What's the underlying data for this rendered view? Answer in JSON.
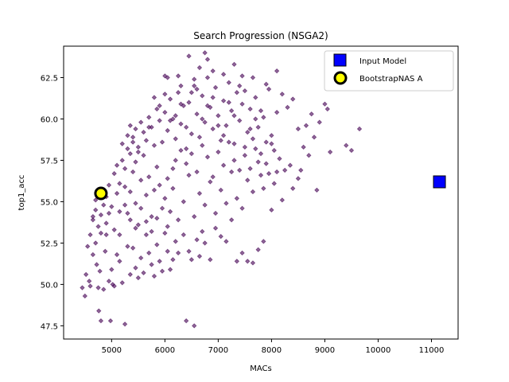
{
  "chart_data": {
    "type": "scatter",
    "title": "Search Progression (NSGA2)",
    "xlabel": "MACs",
    "ylabel": "top1_acc",
    "xlim": [
      4100,
      11500
    ],
    "ylim": [
      46.7,
      64.4
    ],
    "xticks": [
      5000,
      6000,
      7000,
      8000,
      9000,
      10000,
      11000
    ],
    "yticks": [
      47.5,
      50.0,
      52.5,
      55.0,
      57.5,
      60.0,
      62.5
    ],
    "ytick_labels": [
      "47.5",
      "50.0",
      "52.5",
      "55.0",
      "57.5",
      "60.0",
      "62.5"
    ],
    "grid": false,
    "legend_position": "top-right",
    "series": [
      {
        "name": "",
        "marker": "diamond",
        "color": "#440154",
        "alpha": 0.6,
        "points": [
          [
            4450,
            49.8
          ],
          [
            4500,
            49.3
          ],
          [
            4520,
            50.6
          ],
          [
            4580,
            50.2
          ],
          [
            4600,
            49.9
          ],
          [
            4650,
            51.8
          ],
          [
            4700,
            52.5
          ],
          [
            4720,
            51.2
          ],
          [
            4750,
            49.8
          ],
          [
            4760,
            48.4
          ],
          [
            4800,
            47.8
          ],
          [
            4780,
            50.8
          ],
          [
            4850,
            49.7
          ],
          [
            4880,
            52.0
          ],
          [
            4900,
            53.0
          ],
          [
            4950,
            50.2
          ],
          [
            4980,
            47.8
          ],
          [
            5000,
            50.9
          ],
          [
            5020,
            50.0
          ],
          [
            5050,
            49.9
          ],
          [
            5100,
            51.8
          ],
          [
            5150,
            51.4
          ],
          [
            5200,
            50.1
          ],
          [
            5250,
            47.6
          ],
          [
            5300,
            52.3
          ],
          [
            5350,
            50.6
          ],
          [
            5400,
            52.2
          ],
          [
            5450,
            51.0
          ],
          [
            5500,
            50.4
          ],
          [
            5550,
            51.6
          ],
          [
            5600,
            50.7
          ],
          [
            5650,
            53.0
          ],
          [
            5700,
            51.9
          ],
          [
            5750,
            51.2
          ],
          [
            5800,
            50.5
          ],
          [
            5850,
            52.4
          ],
          [
            5900,
            51.4
          ],
          [
            5950,
            50.8
          ],
          [
            6000,
            53.1
          ],
          [
            6050,
            52.0
          ],
          [
            6100,
            50.9
          ],
          [
            6150,
            51.5
          ],
          [
            6200,
            52.6
          ],
          [
            6250,
            51.9
          ],
          [
            6350,
            53.0
          ],
          [
            6400,
            47.8
          ],
          [
            6550,
            47.5
          ],
          [
            6450,
            52.0
          ],
          [
            6500,
            51.5
          ],
          [
            6600,
            52.7
          ],
          [
            6650,
            51.7
          ],
          [
            6700,
            53.2
          ],
          [
            6750,
            52.5
          ],
          [
            6850,
            51.5
          ],
          [
            6950,
            53.4
          ],
          [
            7050,
            52.9
          ],
          [
            7150,
            52.6
          ],
          [
            7250,
            53.9
          ],
          [
            7350,
            51.4
          ],
          [
            7450,
            51.9
          ],
          [
            7550,
            51.4
          ],
          [
            7650,
            51.3
          ],
          [
            7750,
            52.1
          ],
          [
            7850,
            52.6
          ],
          [
            4550,
            52.3
          ],
          [
            4600,
            53.0
          ],
          [
            4650,
            53.9
          ],
          [
            4700,
            54.5
          ],
          [
            4750,
            53.5
          ],
          [
            4800,
            54.2
          ],
          [
            4850,
            54.8
          ],
          [
            4900,
            53.7
          ],
          [
            4950,
            54.3
          ],
          [
            4650,
            54.1
          ],
          [
            4700,
            55.1
          ],
          [
            4800,
            53.1
          ],
          [
            4900,
            55.3
          ],
          [
            4950,
            56.0
          ],
          [
            5000,
            54.7
          ],
          [
            5050,
            53.3
          ],
          [
            5100,
            55.5
          ],
          [
            5150,
            54.4
          ],
          [
            5050,
            56.7
          ],
          [
            5100,
            57.2
          ],
          [
            5150,
            56.1
          ],
          [
            5200,
            57.5
          ],
          [
            5250,
            55.9
          ],
          [
            5300,
            54.3
          ],
          [
            5350,
            55.6
          ],
          [
            5400,
            56.8
          ],
          [
            5450,
            54.9
          ],
          [
            5500,
            53.6
          ],
          [
            5200,
            58.5
          ],
          [
            5250,
            57.0
          ],
          [
            5300,
            58.2
          ],
          [
            5350,
            57.9
          ],
          [
            5400,
            58.6
          ],
          [
            5450,
            57.4
          ],
          [
            5500,
            58.3
          ],
          [
            5550,
            56.3
          ],
          [
            5600,
            57.8
          ],
          [
            5650,
            55.4
          ],
          [
            5700,
            56.5
          ],
          [
            5750,
            54.1
          ],
          [
            5800,
            55.7
          ],
          [
            5850,
            57.1
          ],
          [
            5900,
            56.0
          ],
          [
            5950,
            54.6
          ],
          [
            6000,
            55.2
          ],
          [
            6050,
            56.4
          ],
          [
            6100,
            54.4
          ],
          [
            6150,
            55.8
          ],
          [
            5300,
            59.0
          ],
          [
            5350,
            59.6
          ],
          [
            5400,
            58.9
          ],
          [
            5450,
            59.4
          ],
          [
            5500,
            58.0
          ],
          [
            5550,
            59.8
          ],
          [
            5600,
            59.2
          ],
          [
            5650,
            58.7
          ],
          [
            5700,
            60.1
          ],
          [
            5750,
            59.5
          ],
          [
            5800,
            58.4
          ],
          [
            5850,
            60.6
          ],
          [
            5900,
            59.9
          ],
          [
            5950,
            58.6
          ],
          [
            6000,
            60.4
          ],
          [
            6050,
            59.3
          ],
          [
            6100,
            61.2
          ],
          [
            6150,
            60.0
          ],
          [
            6200,
            58.8
          ],
          [
            6250,
            61.6
          ],
          [
            6300,
            59.7
          ],
          [
            6350,
            60.8
          ],
          [
            6400,
            58.2
          ],
          [
            6450,
            61.0
          ],
          [
            6500,
            59.1
          ],
          [
            6550,
            62.0
          ],
          [
            6600,
            60.3
          ],
          [
            6650,
            58.9
          ],
          [
            6700,
            61.4
          ],
          [
            6750,
            59.8
          ],
          [
            6800,
            62.5
          ],
          [
            6850,
            60.7
          ],
          [
            6900,
            59.4
          ],
          [
            6950,
            61.9
          ],
          [
            7000,
            60.2
          ],
          [
            7050,
            58.7
          ],
          [
            7100,
            61.1
          ],
          [
            7150,
            59.6
          ],
          [
            7200,
            62.2
          ],
          [
            7250,
            60.5
          ],
          [
            7300,
            58.5
          ],
          [
            7350,
            61.6
          ],
          [
            7400,
            59.9
          ],
          [
            7450,
            60.9
          ],
          [
            7500,
            58.3
          ],
          [
            7550,
            59.2
          ],
          [
            7600,
            60.6
          ],
          [
            7650,
            58.8
          ],
          [
            7700,
            61.3
          ],
          [
            7750,
            59.5
          ],
          [
            7800,
            57.9
          ],
          [
            7850,
            60.1
          ],
          [
            7900,
            58.6
          ],
          [
            7950,
            61.8
          ],
          [
            8000,
            59.0
          ],
          [
            8050,
            58.1
          ],
          [
            8100,
            60.4
          ],
          [
            6000,
            62.6
          ],
          [
            6050,
            62.5
          ],
          [
            6250,
            62.6
          ],
          [
            6300,
            62.0
          ],
          [
            6450,
            63.8
          ],
          [
            6550,
            62.4
          ],
          [
            6650,
            63.1
          ],
          [
            6750,
            64.0
          ],
          [
            6800,
            63.6
          ],
          [
            6900,
            62.9
          ],
          [
            7100,
            62.7
          ],
          [
            7300,
            63.3
          ],
          [
            7450,
            62.6
          ],
          [
            7650,
            62.5
          ],
          [
            7900,
            62.1
          ],
          [
            8100,
            62.9
          ],
          [
            8200,
            61.5
          ],
          [
            8300,
            60.7
          ],
          [
            8400,
            61.2
          ],
          [
            8500,
            59.4
          ],
          [
            8600,
            58.3
          ],
          [
            8650,
            59.6
          ],
          [
            8750,
            60.3
          ],
          [
            8800,
            58.9
          ],
          [
            8900,
            59.8
          ],
          [
            9000,
            60.9
          ],
          [
            9050,
            60.6
          ],
          [
            9100,
            58.0
          ],
          [
            9400,
            58.4
          ],
          [
            9500,
            58.1
          ],
          [
            9650,
            59.4
          ],
          [
            8700,
            57.8
          ],
          [
            8500,
            56.4
          ],
          [
            8350,
            57.2
          ],
          [
            8250,
            56.9
          ],
          [
            8150,
            57.6
          ],
          [
            8050,
            56.1
          ],
          [
            7950,
            56.7
          ],
          [
            7850,
            55.8
          ],
          [
            7750,
            57.4
          ],
          [
            7650,
            55.6
          ],
          [
            7550,
            56.3
          ],
          [
            7450,
            54.6
          ],
          [
            7350,
            55.2
          ],
          [
            7250,
            56.8
          ],
          [
            7150,
            54.9
          ],
          [
            7050,
            55.7
          ],
          [
            6950,
            54.3
          ],
          [
            6850,
            56.2
          ],
          [
            6750,
            54.8
          ],
          [
            6650,
            55.5
          ],
          [
            6550,
            54.1
          ],
          [
            6450,
            56.6
          ],
          [
            6350,
            55.0
          ],
          [
            6250,
            53.9
          ],
          [
            6150,
            57.0
          ],
          [
            6050,
            53.5
          ],
          [
            8400,
            55.8
          ],
          [
            8200,
            55.1
          ],
          [
            8000,
            54.5
          ],
          [
            8850,
            55.7
          ],
          [
            8550,
            56.9
          ],
          [
            6200,
            57.5
          ],
          [
            6300,
            58.1
          ],
          [
            6400,
            57.3
          ],
          [
            6500,
            57.9
          ],
          [
            6600,
            56.8
          ],
          [
            6700,
            58.4
          ],
          [
            6800,
            57.7
          ],
          [
            6900,
            56.5
          ],
          [
            7000,
            58.0
          ],
          [
            7100,
            57.2
          ],
          [
            7200,
            58.6
          ],
          [
            7300,
            57.5
          ],
          [
            7400,
            56.9
          ],
          [
            7500,
            57.8
          ],
          [
            7600,
            57.0
          ],
          [
            7700,
            58.2
          ],
          [
            7800,
            56.6
          ],
          [
            7900,
            57.3
          ],
          [
            8000,
            58.5
          ],
          [
            8100,
            56.8
          ],
          [
            5650,
            53.8
          ],
          [
            5750,
            53.2
          ],
          [
            5850,
            54.0
          ],
          [
            5550,
            54.6
          ],
          [
            5450,
            53.4
          ],
          [
            5350,
            53.9
          ],
          [
            5250,
            54.8
          ],
          [
            5150,
            53.0
          ],
          [
            5700,
            59.5
          ],
          [
            5900,
            60.8
          ],
          [
            6100,
            59.9
          ],
          [
            6300,
            60.9
          ],
          [
            6500,
            61.6
          ],
          [
            6700,
            60.0
          ],
          [
            6900,
            61.3
          ],
          [
            7100,
            59.0
          ],
          [
            7300,
            60.2
          ],
          [
            7500,
            61.7
          ],
          [
            7700,
            60.0
          ],
          [
            5800,
            61.3
          ],
          [
            6000,
            61.5
          ],
          [
            6200,
            60.2
          ],
          [
            6400,
            59.5
          ],
          [
            6600,
            61.8
          ],
          [
            6800,
            60.8
          ],
          [
            7000,
            59.6
          ],
          [
            7200,
            61.0
          ],
          [
            7400,
            62.0
          ],
          [
            7600,
            59.4
          ],
          [
            7800,
            60.5
          ]
        ]
      },
      {
        "name": "Input Model",
        "marker": "square",
        "color": "#0000ff",
        "points": [
          [
            11150,
            56.2
          ]
        ]
      },
      {
        "name": "BootstrapNAS A",
        "marker": "circle",
        "color": "#ffff00",
        "edge_color": "#000000",
        "points": [
          [
            4800,
            55.5
          ]
        ]
      }
    ]
  }
}
